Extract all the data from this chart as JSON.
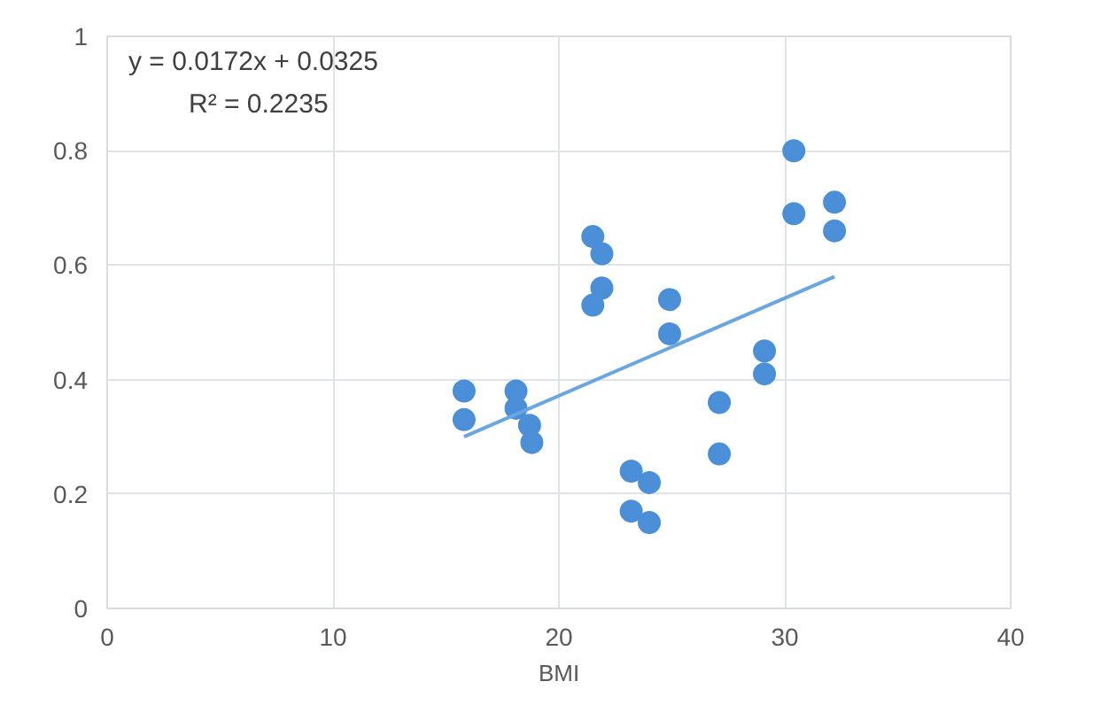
{
  "chart_data": {
    "type": "scatter",
    "xlabel": "BMI",
    "annotations": [
      "y = 0.0172x + 0.0325",
      "R² = 0.2235"
    ],
    "xlim": [
      0,
      40
    ],
    "ylim": [
      0,
      1
    ],
    "xticks": [
      0,
      10,
      20,
      30,
      40
    ],
    "yticks": [
      0,
      0.2,
      0.4,
      0.6,
      0.8,
      1
    ],
    "grid": true,
    "series": [
      {
        "marker": "circle",
        "color": "#4a8fd8",
        "x": [
          15.8,
          15.8,
          18.1,
          18.1,
          18.7,
          18.8,
          21.5,
          21.9,
          21.9,
          21.5,
          24.9,
          24.9,
          23.2,
          24.0,
          23.2,
          24.0,
          27.1,
          27.1,
          29.1,
          29.1,
          30.4,
          30.4,
          32.2,
          32.2
        ],
        "values": [
          0.38,
          0.33,
          0.38,
          0.35,
          0.32,
          0.29,
          0.65,
          0.62,
          0.56,
          0.53,
          0.54,
          0.48,
          0.24,
          0.22,
          0.17,
          0.15,
          0.36,
          0.27,
          0.45,
          0.41,
          0.8,
          0.69,
          0.71,
          0.66
        ]
      },
      {
        "type": "line",
        "color": "#6aa6e0",
        "x": [
          15.8,
          32.2
        ],
        "values": [
          0.3,
          0.58
        ]
      }
    ]
  }
}
